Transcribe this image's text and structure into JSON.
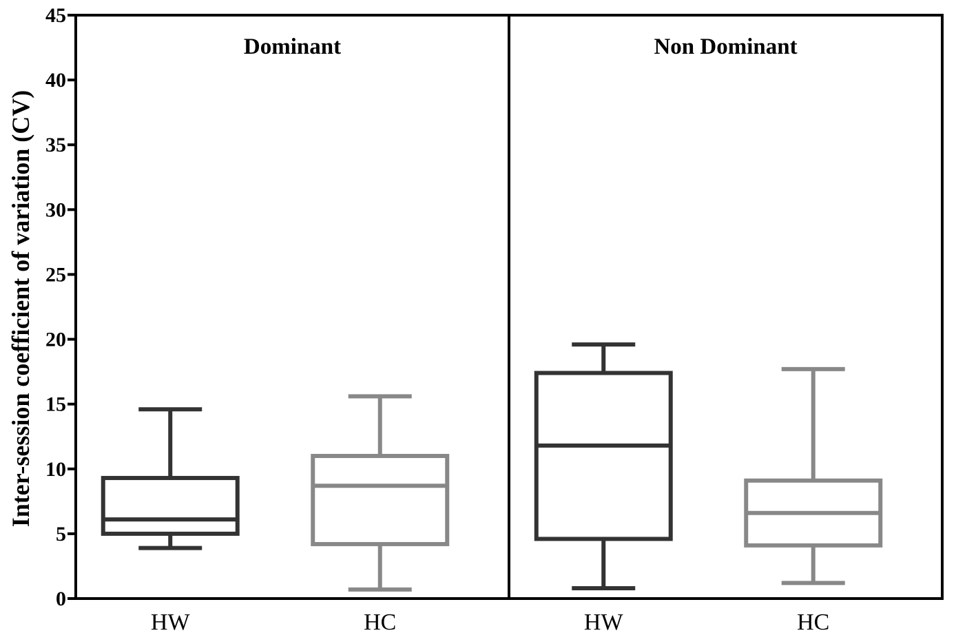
{
  "chart_data": {
    "type": "box",
    "ylabel": "Inter-session coefficient of variation (CV)",
    "ylim": [
      0,
      45
    ],
    "yticks": [
      0,
      5,
      10,
      15,
      20,
      25,
      30,
      35,
      40,
      45
    ],
    "grid": false,
    "panels": [
      {
        "label": "Dominant",
        "boxes": [
          {
            "category": "HW",
            "color": "#333333",
            "min": 3.9,
            "q1": 5.0,
            "median": 6.1,
            "q3": 9.3,
            "max": 14.6
          },
          {
            "category": "HC",
            "color": "#888888",
            "min": 0.7,
            "q1": 4.2,
            "median": 8.7,
            "q3": 11.0,
            "max": 15.6
          }
        ]
      },
      {
        "label": "Non Dominant",
        "boxes": [
          {
            "category": "HW",
            "color": "#333333",
            "min": 0.8,
            "q1": 4.6,
            "median": 11.8,
            "q3": 17.4,
            "max": 19.6
          },
          {
            "category": "HC",
            "color": "#888888",
            "min": 1.2,
            "q1": 4.1,
            "median": 6.6,
            "q3": 9.1,
            "max": 17.7
          }
        ]
      }
    ]
  }
}
